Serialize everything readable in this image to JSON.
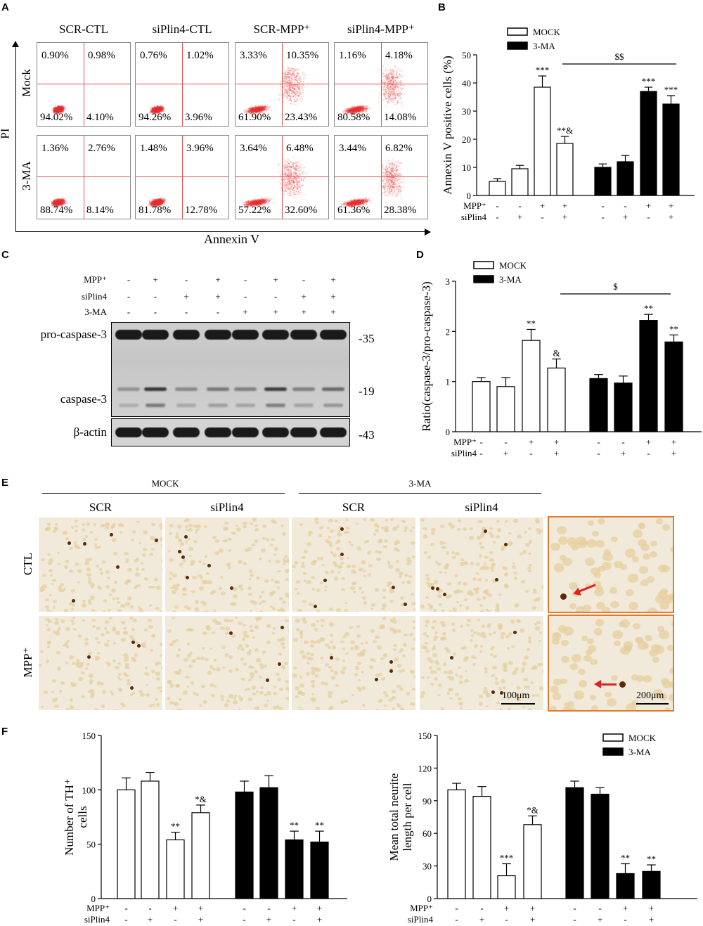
{
  "panel_labels": {
    "A": "A",
    "B": "B",
    "C": "C",
    "D": "D",
    "E": "E",
    "F": "F"
  },
  "panelA": {
    "columns": [
      "SCR-CTL",
      "siPlin4-CTL",
      "SCR-MPP⁺",
      "siPlin4-MPP⁺"
    ],
    "rows": [
      "Mock",
      "3-MA"
    ],
    "y_axis": "PI",
    "x_axis": "Annexin V",
    "plots": [
      [
        [
          "0.90%",
          "0.98%",
          "94.02%",
          "4.10%"
        ],
        [
          "0.76%",
          "1.02%",
          "94.26%",
          "3.96%"
        ],
        [
          "3.33%",
          "10.35%",
          "61.90%",
          "23.43%"
        ],
        [
          "1.16%",
          "4.18%",
          "80.58%",
          "14.08%"
        ]
      ],
      [
        [
          "1.36%",
          "2.76%",
          "88.74%",
          "8.14%"
        ],
        [
          "1.48%",
          "3.96%",
          "81.78%",
          "12.78%"
        ],
        [
          "3.64%",
          "6.48%",
          "57.22%",
          "32.60%"
        ],
        [
          "3.44%",
          "6.82%",
          "61.36%",
          "28.38%"
        ]
      ]
    ]
  },
  "panelC": {
    "conditions": [
      {
        "label": "MPP⁺",
        "signs": [
          "-",
          "+",
          "-",
          "+",
          "-",
          "+",
          "-",
          "+"
        ]
      },
      {
        "label": "siPlin4",
        "signs": [
          "-",
          "-",
          "+",
          "+",
          "-",
          "-",
          "+",
          "+"
        ]
      },
      {
        "label": "3-MA",
        "signs": [
          "-",
          "-",
          "-",
          "-",
          "+",
          "+",
          "+",
          "+"
        ]
      }
    ],
    "rows": [
      {
        "label": "pro-caspase-3",
        "kda": "-35"
      },
      {
        "label": "caspase-3",
        "kda": "-19"
      },
      {
        "label": "β-actin",
        "kda": "-43"
      }
    ],
    "caspase_intensity": [
      0.35,
      0.9,
      0.4,
      0.5,
      0.45,
      0.85,
      0.45,
      0.6
    ]
  },
  "panelE": {
    "groups": [
      "MOCK",
      "3-MA"
    ],
    "subcols": [
      "SCR",
      "siPlin4",
      "SCR",
      "siPlin4"
    ],
    "rows": [
      "CTL",
      "MPP⁺"
    ],
    "scale_bar_1": "100μm",
    "scale_bar_2": "200μm"
  },
  "chart_data": [
    {
      "id": "B",
      "type": "bar",
      "ylabel": "Annexin V positive cells (%)",
      "ylim": [
        0,
        50
      ],
      "yticks": [
        0,
        10,
        20,
        30,
        40,
        50
      ],
      "legend": [
        "MOCK",
        "3-MA"
      ],
      "series": [
        {
          "name": "MOCK",
          "values": [
            5,
            9.5,
            38.5,
            18.5
          ],
          "errors": [
            1,
            1.2,
            4,
            2.5
          ],
          "sig": [
            "",
            "",
            "***",
            "**&"
          ]
        },
        {
          "name": "3-MA",
          "values": [
            10,
            12,
            37,
            32.5
          ],
          "errors": [
            1.2,
            2.2,
            1.5,
            3
          ],
          "sig": [
            "",
            "",
            "***",
            "***"
          ]
        }
      ],
      "bracket_label": "$$",
      "conditions": [
        {
          "label": "MPP⁺",
          "signs": [
            "-",
            "-",
            "+",
            "+",
            "-",
            "-",
            "+",
            "+"
          ]
        },
        {
          "label": "siPlin4",
          "signs": [
            "-",
            "+",
            "-",
            "+",
            "-",
            "+",
            "-",
            "+"
          ]
        }
      ]
    },
    {
      "id": "D",
      "type": "bar",
      "ylabel": "Ratio(caspase-3/pro-caspase-3)",
      "ylim": [
        0,
        3
      ],
      "yticks": [
        0,
        1,
        2,
        3
      ],
      "legend": [
        "MOCK",
        "3-MA"
      ],
      "series": [
        {
          "name": "MOCK",
          "values": [
            1.0,
            0.9,
            1.82,
            1.27
          ],
          "errors": [
            0.08,
            0.18,
            0.22,
            0.18
          ],
          "sig": [
            "",
            "",
            "**",
            "&"
          ]
        },
        {
          "name": "3-MA",
          "values": [
            1.06,
            0.97,
            2.22,
            1.79
          ],
          "errors": [
            0.08,
            0.14,
            0.12,
            0.14
          ],
          "sig": [
            "",
            "",
            "**",
            "**"
          ]
        }
      ],
      "bracket_label": "$",
      "conditions": [
        {
          "label": "MPP⁺",
          "signs": [
            "-",
            "-",
            "+",
            "+",
            "-",
            "-",
            "+",
            "+"
          ]
        },
        {
          "label": "siPlin4",
          "signs": [
            "-",
            "+",
            "-",
            "+",
            "-",
            "+",
            "-",
            "+"
          ]
        }
      ]
    },
    {
      "id": "F1",
      "type": "bar",
      "ylabel": "Number of TH⁺ cells",
      "ylim": [
        0,
        150
      ],
      "yticks": [
        0,
        50,
        100,
        150
      ],
      "series": [
        {
          "name": "MOCK",
          "values": [
            100,
            108,
            54,
            79
          ],
          "errors": [
            11,
            8,
            7,
            7
          ],
          "sig": [
            "",
            "",
            "**",
            "*&"
          ]
        },
        {
          "name": "3-MA",
          "values": [
            98,
            102,
            54,
            52
          ],
          "errors": [
            10,
            11,
            8,
            10
          ],
          "sig": [
            "",
            "",
            "**",
            "**"
          ]
        }
      ],
      "conditions": [
        {
          "label": "MPP⁺",
          "signs": [
            "-",
            "-",
            "+",
            "+",
            "-",
            "-",
            "+",
            "+"
          ]
        },
        {
          "label": "siPlin4",
          "signs": [
            "-",
            "+",
            "-",
            "+",
            "-",
            "+",
            "-",
            "+"
          ]
        }
      ]
    },
    {
      "id": "F2",
      "type": "bar",
      "ylabel": "Mean total neurite length per cell",
      "ylim": [
        0,
        150
      ],
      "yticks": [
        0,
        30,
        60,
        90,
        120,
        150
      ],
      "legend": [
        "MOCK",
        "3-MA"
      ],
      "series": [
        {
          "name": "MOCK",
          "values": [
            100,
            94,
            21,
            68
          ],
          "errors": [
            6,
            9,
            11,
            8
          ],
          "sig": [
            "",
            "",
            "***",
            "*&"
          ]
        },
        {
          "name": "3-MA",
          "values": [
            102,
            96,
            23,
            25
          ],
          "errors": [
            6,
            6,
            9,
            6
          ],
          "sig": [
            "",
            "",
            "**",
            "**"
          ]
        }
      ],
      "conditions": [
        {
          "label": "MPP⁺",
          "signs": [
            "-",
            "-",
            "+",
            "+",
            "-",
            "-",
            "+",
            "+"
          ]
        },
        {
          "label": "siPlin4",
          "signs": [
            "-",
            "+",
            "-",
            "+",
            "-",
            "+",
            "-",
            "+"
          ]
        }
      ]
    }
  ],
  "colors": {
    "mock_fill": "#ffffff",
    "ma_fill": "#000000",
    "flow_dot": "#e83030",
    "stain": "#f1eada",
    "cell": "#e6cf9e",
    "neuron": "#5a2a08",
    "inset_border": "#e07a30",
    "arrow": "#e02020"
  }
}
